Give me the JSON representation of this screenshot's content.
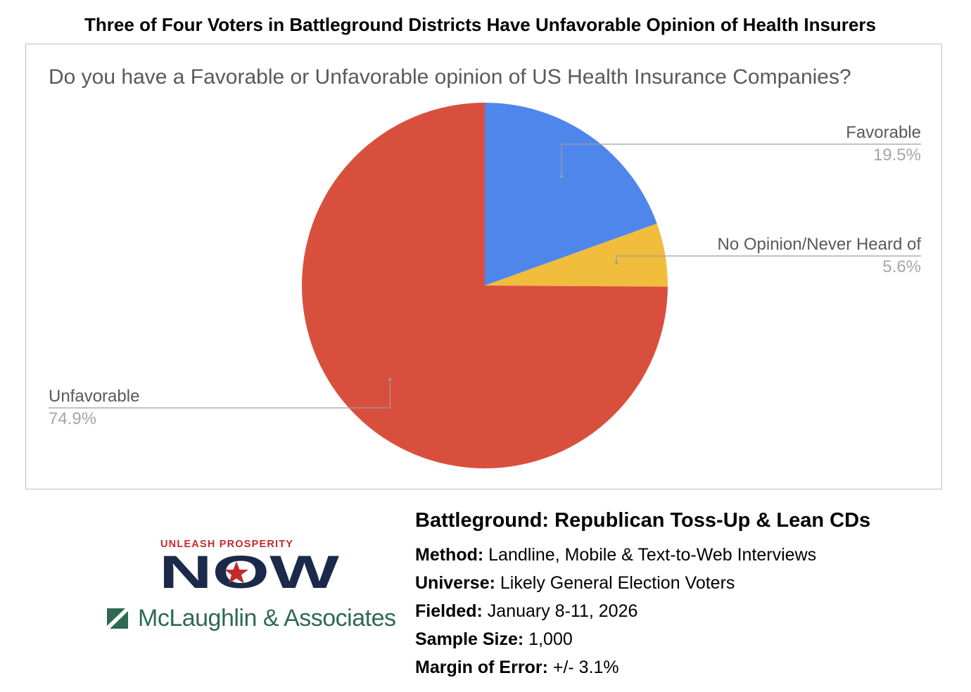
{
  "title": "Three of Four Voters in Battleground Districts Have Unfavorable Opinion of Health Insurers",
  "chart_data": {
    "type": "pie",
    "title": "Do you have a Favorable or Unfavorable opinion of US Health Insurance Companies?",
    "slices": [
      {
        "label": "Favorable",
        "value": 19.5,
        "display": "19.5%",
        "color": "#4f86ec"
      },
      {
        "label": "No Opinion/Never Heard of",
        "value": 5.6,
        "display": "5.6%",
        "color": "#f0bd3d"
      },
      {
        "label": "Unfavorable",
        "value": 74.9,
        "display": "74.9%",
        "color": "#d94f3e"
      }
    ],
    "start_angle": "12 o'clock",
    "direction": "clockwise"
  },
  "logos": {
    "brand_tagline": "UNLEASH PROSPERITY",
    "brand_word": "NOW",
    "firm_name": "McLaughlin & Associates",
    "brand_red": "#c22a2e",
    "brand_navy": "#1b2a4a",
    "firm_green": "#2e6a52"
  },
  "methodology": {
    "heading": "Battleground: Republican Toss-Up & Lean CDs",
    "rows": [
      {
        "label": "Method:",
        "value": "Landline, Mobile & Text-to-Web Interviews"
      },
      {
        "label": "Universe:",
        "value": "Likely General Election Voters"
      },
      {
        "label": "Fielded:",
        "value": "January 8-11, 2026"
      },
      {
        "label": "Sample Size:",
        "value": "1,000"
      },
      {
        "label": "Margin of Error:",
        "value": "+/- 3.1%"
      }
    ]
  }
}
